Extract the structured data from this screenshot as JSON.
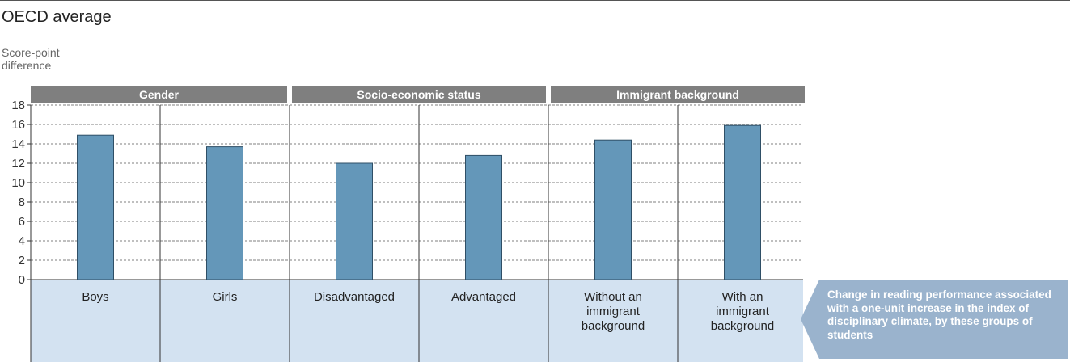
{
  "title": "OECD average",
  "chart_data": {
    "type": "bar",
    "ylabel": "Score-point\ndifference",
    "ylim": [
      0,
      18
    ],
    "yticks": [
      0,
      2,
      4,
      6,
      8,
      10,
      12,
      14,
      16,
      18
    ],
    "grid": "dotted horizontal",
    "groups": [
      {
        "label": "Gender",
        "categories": [
          "Boys",
          "Girls"
        ]
      },
      {
        "label": "Socio-economic status",
        "categories": [
          "Disadvantaged",
          "Advantaged"
        ]
      },
      {
        "label": "Immigrant background",
        "categories": [
          "Without an\nimmigrant\nbackground",
          "With an\nimmigrant\nbackground"
        ]
      }
    ],
    "categories": [
      "Boys",
      "Girls",
      "Disadvantaged",
      "Advantaged",
      "Without an\nimmigrant\nbackground",
      "With an\nimmigrant\nbackground"
    ],
    "values": [
      14.9,
      13.7,
      12.0,
      12.8,
      14.4,
      15.9
    ],
    "bar_color": "#6497b9",
    "header_color": "#7f7f7f",
    "category_bg_color": "#d3e2f1"
  },
  "legend_note": "Change in reading performance associated with a one-unit increase in the index of disciplinary climate, by these groups of students"
}
